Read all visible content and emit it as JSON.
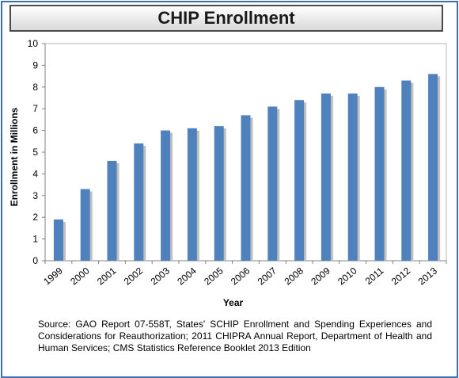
{
  "chart_data": {
    "type": "bar",
    "title": "CHIP Enrollment",
    "xlabel": "Year",
    "ylabel": "Enrollment in Millions",
    "categories": [
      "1999",
      "2000",
      "2001",
      "2002",
      "2003",
      "2004",
      "2005",
      "2006",
      "2007",
      "2008",
      "2009",
      "2010",
      "2011",
      "2012",
      "2013"
    ],
    "values": [
      1.9,
      3.3,
      4.6,
      5.4,
      6.0,
      6.1,
      6.2,
      6.7,
      7.1,
      7.4,
      7.7,
      7.7,
      8.0,
      8.3,
      8.6
    ],
    "ylim": [
      0,
      10
    ],
    "yticks": [
      "0",
      "1",
      "2",
      "3",
      "4",
      "5",
      "6",
      "7",
      "8",
      "9",
      "10"
    ],
    "grid": false,
    "legend": "none",
    "bar_color": "#4f81bd",
    "source": "Source:  GAO Report 07-558T, States' SCHIP Enrollment and Spending Experiences and Considerations for Reauthorization; 2011 CHIPRA Annual Report, Department of Health and Human Services; CMS Statistics Reference Booklet 2013 Edition"
  }
}
